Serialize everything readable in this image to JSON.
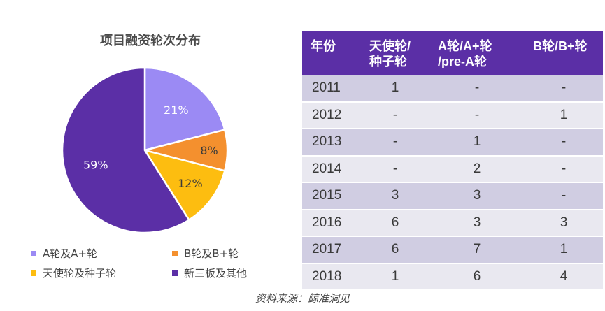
{
  "chart_data": [
    {
      "type": "pie",
      "title": "项目融资轮次分布",
      "categories": [
        "A轮及A+轮",
        "B轮及B+轮",
        "天使轮及种子轮",
        "新三板及其他"
      ],
      "values": [
        21,
        8,
        12,
        59
      ],
      "labels": [
        "21%",
        "8%",
        "12%",
        "59%"
      ],
      "colors": [
        "#9b8af4",
        "#f4902e",
        "#fdbd10",
        "#5b2fa6"
      ],
      "legend_position": "bottom"
    },
    {
      "type": "table",
      "columns": [
        [
          "年份"
        ],
        [
          "天使轮/",
          "种子轮"
        ],
        [
          "A轮/A+轮",
          "/pre-A轮"
        ],
        [
          "B轮/B+轮"
        ]
      ],
      "rows": [
        [
          "2011",
          "1",
          "-",
          "-"
        ],
        [
          "2012",
          "-",
          "-",
          "1"
        ],
        [
          "2013",
          "-",
          "1",
          "-"
        ],
        [
          "2014",
          "-",
          "2",
          "-"
        ],
        [
          "2015",
          "3",
          "3",
          "-"
        ],
        [
          "2016",
          "6",
          "3",
          "3"
        ],
        [
          "2017",
          "6",
          "7",
          "1"
        ],
        [
          "2018",
          "1",
          "6",
          "4"
        ]
      ]
    }
  ],
  "source": "资料来源：鲸准洞见"
}
